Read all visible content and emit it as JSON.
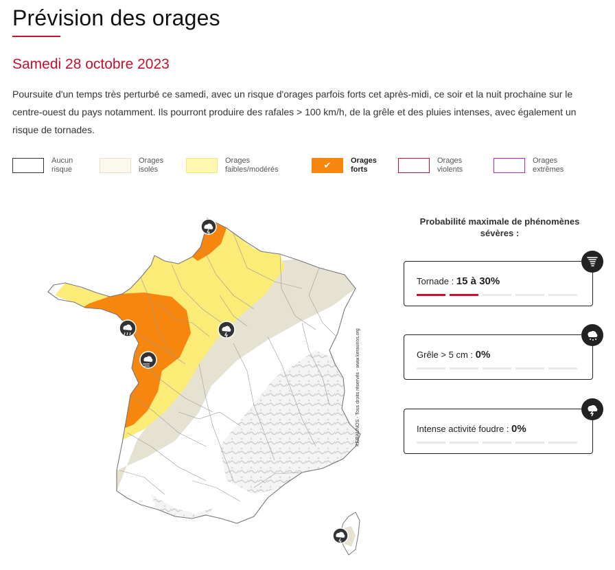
{
  "header": {
    "title": "Prévision des orages",
    "date": "Samedi 28 octobre 2023",
    "description": "Poursuite d'un temps très perturbé ce samedi, avec un risque d'orages parfois forts cet après-midi, ce soir et la nuit prochaine sur le centre-ouest du pays notamment. Ils pourront produire des rafales > 100 km/h, de la grêle et des pluies intenses, avec également un risque de tornades."
  },
  "legend": [
    {
      "line1": "Aucun",
      "line2": "risque",
      "fill": "#ffffff",
      "border": "#333333",
      "active": false
    },
    {
      "line1": "Orages",
      "line2": "isolés",
      "fill": "#fbf8ee",
      "border": "#e6dfc4",
      "active": false
    },
    {
      "line1": "Orages",
      "line2": "faibles/modérés",
      "fill": "#fff7b0",
      "border": "#f4e680",
      "active": false
    },
    {
      "line1": "Orages",
      "line2": "forts",
      "fill": "#f7860f",
      "border": "#f7860f",
      "active": true,
      "check": "✔"
    },
    {
      "line1": "Orages",
      "line2": "violents",
      "fill": "#ffffff",
      "border": "#c8102e",
      "active": false
    },
    {
      "line1": "Orages",
      "line2": "extrêmes",
      "fill": "#ffffff",
      "border": "#c81ec8",
      "active": false
    }
  ],
  "map": {
    "copyright": "KERAUNOS - Tous droits réservés - www.keraunos.org",
    "colors": {
      "strong": "#f7860f",
      "moderate": "#fbec78",
      "isolated": "#e6e2d2",
      "none": "#ffffff"
    }
  },
  "probability": {
    "title": "Probabilité maximale de phénomènes sévères :",
    "cards": [
      {
        "label": "Tornade :",
        "value": "15 à 30%",
        "level": 2,
        "icon": "tornado-icon"
      },
      {
        "label": "Grêle > 5 cm :",
        "value": "0%",
        "level": 0,
        "icon": "hail-icon"
      },
      {
        "label": "Intense activité foudre :",
        "value": "0%",
        "level": 0,
        "icon": "lightning-icon"
      }
    ]
  }
}
